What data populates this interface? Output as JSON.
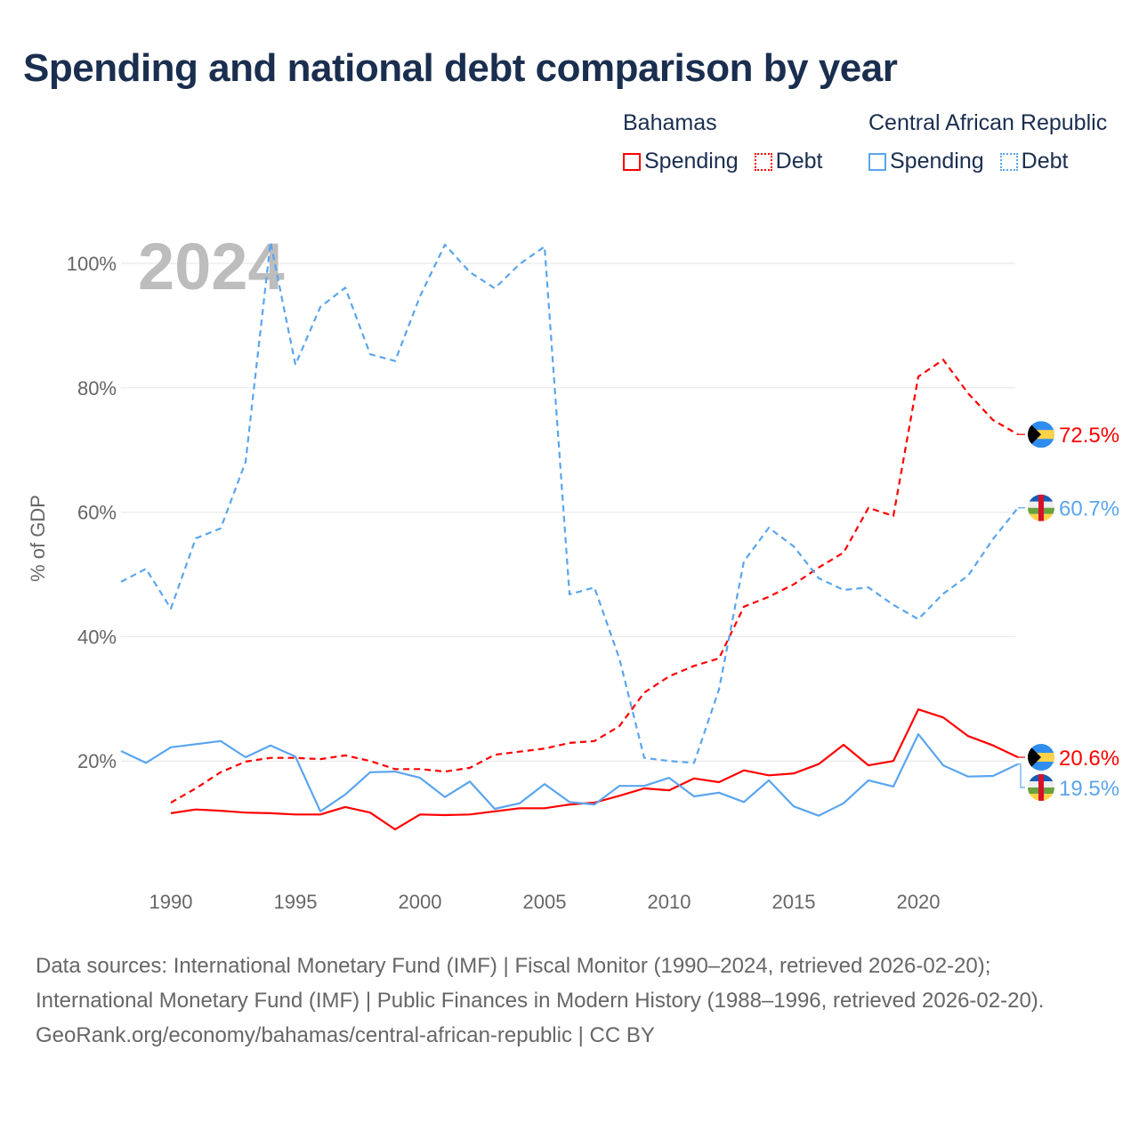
{
  "chart_data": {
    "type": "line",
    "title": "Spending and national debt comparison by year",
    "ylabel": "% of GDP",
    "xlabel": "",
    "ylim": [
      0,
      105
    ],
    "xlim": [
      1988,
      2024
    ],
    "yticks": [
      20,
      40,
      60,
      80,
      100
    ],
    "ytick_labels": [
      "20%",
      "40%",
      "60%",
      "80%",
      "100%"
    ],
    "xticks": [
      1990,
      1995,
      2000,
      2005,
      2010,
      2015,
      2020
    ],
    "xtick_labels": [
      "1990",
      "1995",
      "2000",
      "2005",
      "2010",
      "2015",
      "2020"
    ],
    "grid": true,
    "year_watermark": "2024",
    "legend": {
      "placement": "top-right",
      "groups": [
        {
          "country": "Bahamas",
          "items": [
            "Spending",
            "Debt"
          ]
        },
        {
          "country": "Central African Republic",
          "items": [
            "Spending",
            "Debt"
          ]
        }
      ]
    },
    "series": [
      {
        "name": "Bahamas Spending",
        "country": "Bahamas",
        "style": "solid",
        "color": "#ff0000",
        "start": 1990,
        "values": [
          11.6,
          12.2,
          12.0,
          11.7,
          11.6,
          11.4,
          11.4,
          12.6,
          11.7,
          9.0,
          11.4,
          11.3,
          11.4,
          11.9,
          12.4,
          12.4,
          13.0,
          13.3,
          14.4,
          15.6,
          15.3,
          17.2,
          16.6,
          18.5,
          17.7,
          18.0,
          19.5,
          22.6,
          19.3,
          20.0,
          28.3,
          27.0,
          24.0,
          22.5,
          20.6
        ],
        "end_label": "20.6%"
      },
      {
        "name": "Bahamas Debt",
        "country": "Bahamas",
        "style": "dashed",
        "color": "#ff0000",
        "start": 1990,
        "values": [
          13.3,
          15.6,
          18.2,
          19.9,
          20.5,
          20.5,
          20.3,
          20.9,
          20.0,
          18.7,
          18.7,
          18.3,
          18.9,
          21.0,
          21.5,
          22.0,
          22.9,
          23.2,
          25.6,
          31.0,
          33.6,
          35.3,
          36.5,
          44.8,
          46.4,
          48.4,
          51.1,
          53.5,
          60.7,
          59.4,
          81.8,
          84.5,
          79.1,
          74.8,
          72.5
        ],
        "end_label": "72.5%"
      },
      {
        "name": "Central African Republic Spending",
        "country": "Central African Republic",
        "style": "solid",
        "color": "#5aa5ee",
        "start": 1988,
        "values": [
          21.6,
          19.7,
          22.2,
          22.7,
          23.2,
          20.6,
          22.5,
          20.7,
          11.9,
          14.6,
          18.2,
          18.3,
          17.3,
          14.2,
          16.7,
          12.3,
          13.2,
          16.3,
          13.4,
          13.0,
          16.0,
          16.0,
          17.3,
          14.3,
          14.9,
          13.4,
          16.9,
          12.7,
          11.2,
          13.2,
          16.9,
          15.9,
          24.3,
          19.3,
          17.5,
          17.6,
          19.5
        ],
        "end_label": "19.5%"
      },
      {
        "name": "Central African Republic Debt",
        "country": "Central African Republic",
        "style": "dashed",
        "color": "#5aa5ee",
        "start": 1988,
        "values": [
          48.8,
          50.9,
          44.5,
          55.8,
          57.4,
          68.1,
          103.4,
          83.7,
          93.0,
          96.1,
          85.4,
          84.3,
          94.7,
          103.0,
          98.6,
          96.0,
          99.9,
          102.7,
          46.8,
          47.9,
          36.5,
          20.5,
          20.0,
          19.7,
          31.5,
          52.1,
          57.5,
          54.5,
          49.4,
          47.5,
          47.9,
          45.1,
          42.8,
          46.9,
          49.8,
          55.7,
          60.7
        ],
        "end_label": "60.7%"
      }
    ]
  },
  "footer": {
    "sources": "Data sources: International Monetary Fund (IMF) | Fiscal Monitor (1990–2024, retrieved 2026-02-20); International Monetary Fund (IMF) | Public Finances in Modern History (1988–1996, retrieved 2026-02-20).",
    "attribution": "GeoRank.org/economy/bahamas/central-african-republic | CC BY"
  },
  "colors": {
    "bahamas": "#ff0000",
    "car": "#5aa5ee",
    "title": "#1a2e4f"
  }
}
